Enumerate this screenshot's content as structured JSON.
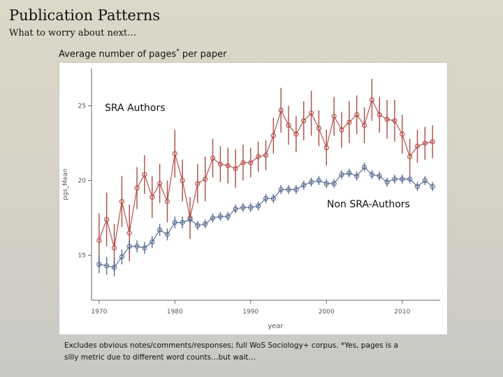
{
  "slide": {
    "title": "Publication Patterns",
    "subtitle": "What to worry about next…",
    "chart_heading": "Average number of pages",
    "chart_heading_mark": "*",
    "chart_heading_suffix": " per paper",
    "footnote_line1": "Excludes obvious notes/comments/responses; full WoS Sociology+ corpus.  *Yes, pages is a",
    "footnote_line2": "silly metric due to different word counts…but wait…"
  },
  "colors": {
    "sra": "#b5534a",
    "sra_bars": "#9a2c22",
    "non_sra": "#5a6f96",
    "non_sra_bars": "#3e5585",
    "axis": "#666666"
  },
  "chart_data": {
    "type": "line",
    "title": "Average number of pages* per paper",
    "xlabel": "year",
    "ylabel": "pgs_Mean",
    "xlim": [
      1969,
      2015
    ],
    "ylim": [
      12,
      27.5
    ],
    "xticks": [
      1970,
      1980,
      1990,
      2000,
      2010
    ],
    "yticks": [
      15,
      20,
      25
    ],
    "annotations": [
      "SRA Authors",
      "Non SRA-Authors"
    ],
    "series": [
      {
        "name": "SRA Authors",
        "color": "#b5534a",
        "x": [
          1970,
          1971,
          1972,
          1973,
          1974,
          1975,
          1976,
          1977,
          1978,
          1979,
          1980,
          1981,
          1982,
          1983,
          1984,
          1985,
          1986,
          1987,
          1988,
          1989,
          1990,
          1991,
          1992,
          1993,
          1994,
          1995,
          1996,
          1997,
          1998,
          1999,
          2000,
          2001,
          2002,
          2003,
          2004,
          2005,
          2006,
          2007,
          2008,
          2009,
          2010,
          2011,
          2012,
          2013,
          2014
        ],
        "y": [
          16.0,
          17.4,
          15.5,
          18.6,
          16.5,
          19.5,
          20.4,
          18.9,
          19.8,
          18.6,
          21.8,
          20.0,
          17.5,
          19.8,
          20.1,
          21.5,
          21.1,
          21.0,
          20.8,
          21.2,
          21.2,
          21.6,
          21.7,
          23.0,
          24.7,
          23.7,
          23.1,
          24.0,
          24.5,
          23.5,
          22.2,
          24.3,
          23.4,
          23.9,
          24.4,
          23.7,
          25.4,
          24.4,
          24.1,
          24.0,
          23.1,
          21.6,
          22.3,
          22.5,
          22.6
        ],
        "err": [
          1.8,
          1.8,
          1.6,
          1.7,
          1.9,
          1.4,
          1.3,
          1.4,
          1.3,
          1.4,
          1.6,
          1.4,
          1.4,
          1.3,
          1.5,
          1.3,
          1.2,
          1.2,
          1.3,
          1.2,
          1.0,
          1.0,
          1.0,
          1.2,
          1.5,
          1.3,
          1.2,
          1.3,
          1.5,
          1.2,
          1.2,
          1.3,
          1.2,
          1.4,
          1.3,
          1.2,
          1.4,
          1.2,
          1.3,
          1.4,
          1.3,
          1.2,
          1.1,
          1.1,
          1.1
        ]
      },
      {
        "name": "Non SRA-Authors",
        "color": "#5a6f96",
        "x": [
          1970,
          1971,
          1972,
          1973,
          1974,
          1975,
          1976,
          1977,
          1978,
          1979,
          1980,
          1981,
          1982,
          1983,
          1984,
          1985,
          1986,
          1987,
          1988,
          1989,
          1990,
          1991,
          1992,
          1993,
          1994,
          1995,
          1996,
          1997,
          1998,
          1999,
          2000,
          2001,
          2002,
          2003,
          2004,
          2005,
          2006,
          2007,
          2008,
          2009,
          2010,
          2011,
          2012,
          2013,
          2014
        ],
        "y": [
          14.4,
          14.3,
          14.2,
          14.9,
          15.6,
          15.6,
          15.5,
          15.9,
          16.7,
          16.4,
          17.2,
          17.2,
          17.4,
          17.0,
          17.1,
          17.5,
          17.6,
          17.6,
          18.1,
          18.2,
          18.2,
          18.3,
          18.8,
          18.8,
          19.4,
          19.4,
          19.4,
          19.7,
          19.9,
          20.0,
          19.8,
          19.8,
          20.4,
          20.5,
          20.3,
          20.9,
          20.4,
          20.3,
          19.9,
          20.1,
          20.1,
          20.1,
          19.6,
          20.0,
          19.6
        ],
        "err": [
          0.6,
          0.6,
          0.6,
          0.5,
          0.4,
          0.4,
          0.4,
          0.4,
          0.4,
          0.4,
          0.4,
          0.4,
          0.3,
          0.3,
          0.3,
          0.3,
          0.3,
          0.3,
          0.3,
          0.3,
          0.3,
          0.3,
          0.3,
          0.3,
          0.3,
          0.3,
          0.3,
          0.3,
          0.3,
          0.3,
          0.3,
          0.3,
          0.3,
          0.3,
          0.3,
          0.3,
          0.3,
          0.3,
          0.3,
          0.3,
          0.3,
          0.3,
          0.3,
          0.3,
          0.3
        ]
      }
    ]
  }
}
